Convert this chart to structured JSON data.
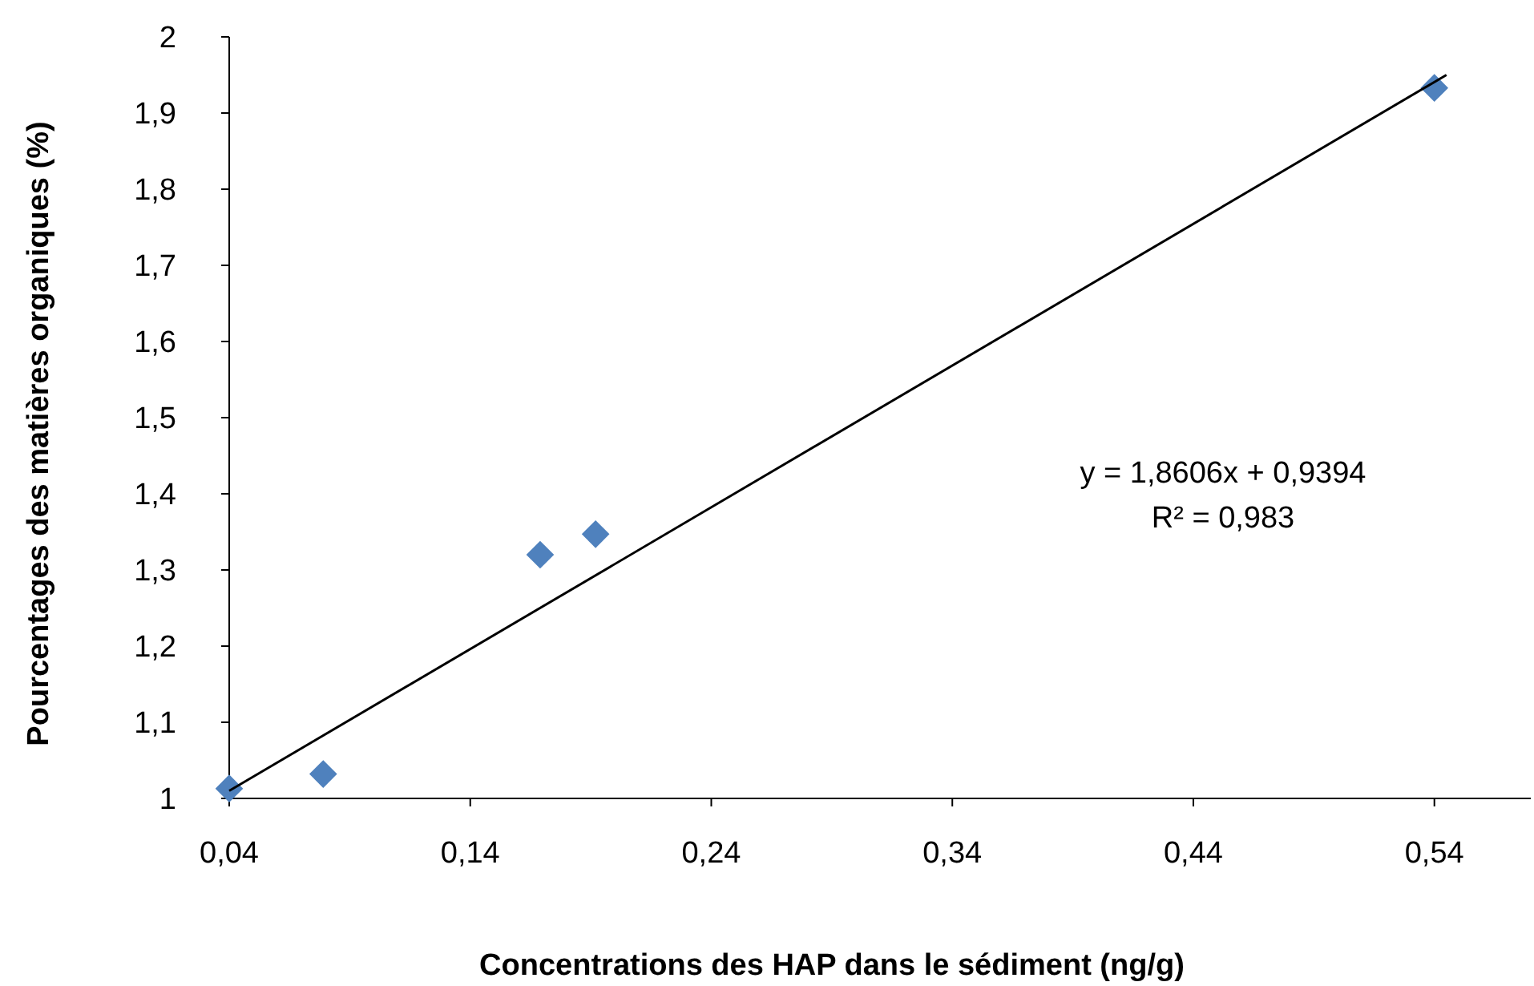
{
  "chart_data": {
    "type": "scatter",
    "xlabel": "Concentrations des HAP dans le sédiment (ng/g)",
    "ylabel": "Pourcentages des matières organiques (%)",
    "xlim": [
      0.04,
      0.58
    ],
    "ylim": [
      1,
      2
    ],
    "xticks": [
      {
        "value": 0.04,
        "label": "0,04"
      },
      {
        "value": 0.14,
        "label": "0,14"
      },
      {
        "value": 0.24,
        "label": "0,24"
      },
      {
        "value": 0.34,
        "label": "0,34"
      },
      {
        "value": 0.44,
        "label": "0,44"
      },
      {
        "value": 0.54,
        "label": "0,54"
      }
    ],
    "yticks": [
      1,
      {
        "value": 1.1,
        "label": "1,1"
      },
      {
        "value": 1.2,
        "label": "1,2"
      },
      {
        "value": 1.3,
        "label": "1,3"
      },
      {
        "value": 1.4,
        "label": "1,4"
      },
      {
        "value": 1.5,
        "label": "1,5"
      },
      {
        "value": 1.6,
        "label": "1,6"
      },
      {
        "value": 1.7,
        "label": "1,7"
      },
      {
        "value": 1.8,
        "label": "1,8"
      },
      {
        "value": 1.9,
        "label": "1,9"
      },
      2
    ],
    "grid": false,
    "series": [
      {
        "color": "#4f81bd",
        "marker": "diamond",
        "x": [
          0.04,
          0.079,
          0.169,
          0.192,
          0.54
        ],
        "values": [
          1.013,
          1.032,
          1.32,
          1.347,
          1.933
        ]
      },
      {
        "type": "line",
        "color": "#000000",
        "marker": "none",
        "x": [
          0.04,
          0.545
        ],
        "values": [
          1.01,
          1.95
        ]
      }
    ],
    "annotations": [
      "y = 1,8606x + 0,9394\nR² = 0,983"
    ]
  }
}
